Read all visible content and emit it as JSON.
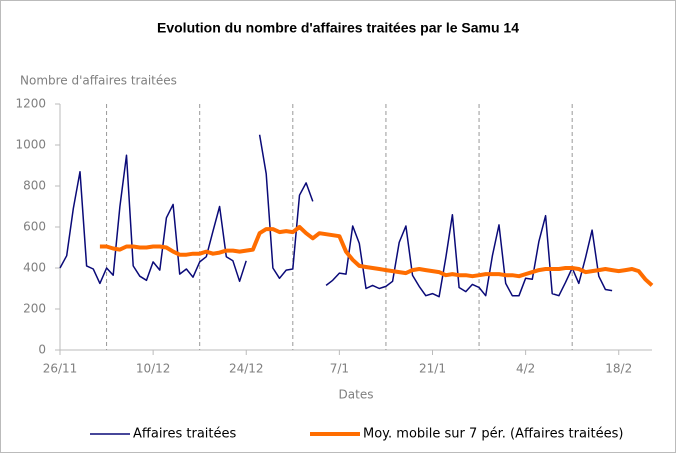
{
  "chart_data": {
    "type": "line",
    "title": "Evolution du nombre d'affaires traitées par le Samu 14",
    "y_label": "Nombre d'affaires traitées",
    "x_label": "Dates",
    "categories": [
      "26/11",
      null,
      null,
      null,
      null,
      null,
      null,
      null,
      null,
      null,
      null,
      null,
      null,
      null,
      "10/12",
      null,
      null,
      null,
      null,
      null,
      null,
      null,
      null,
      null,
      null,
      null,
      null,
      null,
      "24/12",
      null,
      null,
      null,
      null,
      null,
      null,
      null,
      null,
      null,
      null,
      null,
      null,
      null,
      "7/1",
      null,
      null,
      null,
      null,
      null,
      null,
      null,
      null,
      null,
      null,
      null,
      null,
      null,
      "21/1",
      null,
      null,
      null,
      null,
      null,
      null,
      null,
      null,
      null,
      null,
      null,
      null,
      null,
      "4/2",
      null,
      null,
      null,
      null,
      null,
      null,
      null,
      null,
      null,
      null,
      null,
      null,
      null,
      "18/2",
      null,
      null,
      null,
      null,
      null
    ],
    "series": [
      {
        "name": "Affaires traitées",
        "color": "#0a0a78",
        "values": [
          400,
          460,
          690,
          870,
          410,
          395,
          325,
          400,
          365,
          700,
          950,
          410,
          360,
          340,
          430,
          390,
          645,
          710,
          370,
          395,
          355,
          430,
          455,
          580,
          700,
          455,
          435,
          335,
          435,
          null,
          1050,
          860,
          400,
          350,
          390,
          395,
          755,
          815,
          725,
          null,
          315,
          340,
          375,
          370,
          605,
          520,
          300,
          315,
          300,
          310,
          335,
          525,
          605,
          365,
          310,
          265,
          275,
          260,
          450,
          660,
          305,
          285,
          320,
          305,
          265,
          460,
          610,
          325,
          265,
          265,
          350,
          345,
          530,
          655,
          275,
          265,
          330,
          400,
          325,
          450,
          585,
          360,
          295,
          290,
          null,
          null,
          null,
          null,
          null,
          null
        ]
      },
      {
        "name": "Moy. mobile sur 7 pér. (Affaires traitées)",
        "color": "#ff6d00",
        "values": [
          null,
          null,
          null,
          null,
          null,
          null,
          505,
          505,
          495,
          490,
          505,
          505,
          500,
          500,
          505,
          505,
          500,
          480,
          465,
          465,
          470,
          470,
          480,
          470,
          475,
          485,
          485,
          480,
          485,
          490,
          570,
          590,
          590,
          575,
          580,
          575,
          600,
          570,
          545,
          570,
          565,
          560,
          555,
          480,
          440,
          410,
          405,
          400,
          395,
          390,
          385,
          380,
          375,
          390,
          395,
          390,
          385,
          380,
          365,
          370,
          365,
          365,
          360,
          365,
          370,
          370,
          370,
          365,
          365,
          360,
          370,
          380,
          390,
          395,
          395,
          395,
          400,
          400,
          395,
          380,
          385,
          390,
          395,
          390,
          385,
          390,
          395,
          385,
          345,
          315
        ]
      }
    ],
    "ylim": [
      0,
      1200
    ],
    "yticks": [
      0,
      200,
      400,
      600,
      800,
      1000,
      1200
    ],
    "grid": true
  }
}
